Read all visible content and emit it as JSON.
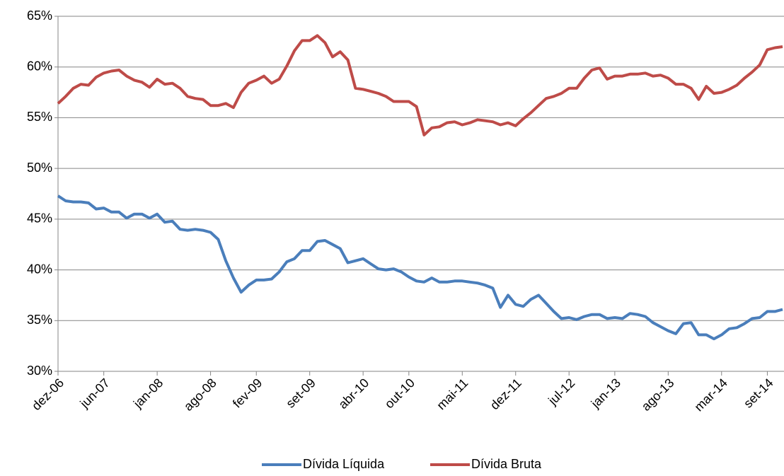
{
  "chart_data": {
    "type": "line",
    "categories": [
      "dez-06",
      null,
      null,
      null,
      null,
      null,
      "jun-07",
      null,
      null,
      null,
      null,
      null,
      null,
      "jan-08",
      null,
      null,
      null,
      null,
      null,
      null,
      "ago-08",
      null,
      null,
      null,
      null,
      null,
      "fev-09",
      null,
      null,
      null,
      null,
      null,
      null,
      "set-09",
      null,
      null,
      null,
      null,
      null,
      null,
      "abr-10",
      null,
      null,
      null,
      null,
      null,
      "out-10",
      null,
      null,
      null,
      null,
      null,
      null,
      "mai-11",
      null,
      null,
      null,
      null,
      null,
      null,
      "dez-11",
      null,
      null,
      null,
      null,
      null,
      null,
      "jul-12",
      null,
      null,
      null,
      null,
      null,
      "jan-13",
      null,
      null,
      null,
      null,
      null,
      null,
      "ago-13",
      null,
      null,
      null,
      null,
      null,
      null,
      "mar-14",
      null,
      null,
      null,
      null,
      null,
      "set-14",
      null,
      null
    ],
    "series": [
      {
        "name": "Dívida Líquida",
        "color": "#4a7ebb",
        "values": [
          47.3,
          46.8,
          46.7,
          46.7,
          46.6,
          46.0,
          46.1,
          45.7,
          45.7,
          45.1,
          45.5,
          45.5,
          45.1,
          45.5,
          44.7,
          44.8,
          44.0,
          43.9,
          44.0,
          43.9,
          43.7,
          43.0,
          40.9,
          39.2,
          37.8,
          38.5,
          39.0,
          39.0,
          39.1,
          39.8,
          40.8,
          41.1,
          41.9,
          41.9,
          42.8,
          42.9,
          42.5,
          42.1,
          40.7,
          40.9,
          41.1,
          40.6,
          40.1,
          40.0,
          40.1,
          39.8,
          39.3,
          38.9,
          38.8,
          39.2,
          38.8,
          38.8,
          38.9,
          38.9,
          38.8,
          38.7,
          38.5,
          38.2,
          36.3,
          37.5,
          36.6,
          36.4,
          37.1,
          37.5,
          36.7,
          35.9,
          35.2,
          35.3,
          35.1,
          35.4,
          35.6,
          35.6,
          35.2,
          35.3,
          35.2,
          35.7,
          35.6,
          35.4,
          34.8,
          34.4,
          34.0,
          33.7,
          34.7,
          34.8,
          33.6,
          33.6,
          33.2,
          33.6,
          34.2,
          34.3,
          34.7,
          35.2,
          35.3,
          35.9,
          35.9,
          36.1
        ]
      },
      {
        "name": "Dívida Bruta",
        "color": "#be4b48",
        "values": [
          56.4,
          57.1,
          57.9,
          58.3,
          58.2,
          59.0,
          59.4,
          59.6,
          59.7,
          59.1,
          58.7,
          58.5,
          58.0,
          58.8,
          58.3,
          58.4,
          57.9,
          57.1,
          56.9,
          56.8,
          56.2,
          56.2,
          56.4,
          56.0,
          57.5,
          58.4,
          58.7,
          59.1,
          58.4,
          58.8,
          60.1,
          61.6,
          62.6,
          62.6,
          63.1,
          62.4,
          61.0,
          61.5,
          60.7,
          57.9,
          57.8,
          57.6,
          57.4,
          57.1,
          56.6,
          56.6,
          56.6,
          56.1,
          53.3,
          54.0,
          54.1,
          54.5,
          54.6,
          54.3,
          54.5,
          54.8,
          54.7,
          54.6,
          54.3,
          54.5,
          54.2,
          54.9,
          55.5,
          56.2,
          56.9,
          57.1,
          57.4,
          57.9,
          57.9,
          58.9,
          59.7,
          59.9,
          58.8,
          59.1,
          59.1,
          59.3,
          59.3,
          59.4,
          59.1,
          59.2,
          58.9,
          58.3,
          58.3,
          57.9,
          56.8,
          58.1,
          57.4,
          57.5,
          57.8,
          58.2,
          58.9,
          59.5,
          60.2,
          61.7,
          61.9,
          62.0
        ]
      }
    ],
    "ylim": [
      30,
      65
    ],
    "yticks": [
      {
        "value": 30,
        "label": "30%"
      },
      {
        "value": 35,
        "label": "35%"
      },
      {
        "value": 40,
        "label": "40%"
      },
      {
        "value": 45,
        "label": "45%"
      },
      {
        "value": 50,
        "label": "50%"
      },
      {
        "value": 55,
        "label": "55%"
      },
      {
        "value": 60,
        "label": "60%"
      },
      {
        "value": 65,
        "label": "65%"
      }
    ],
    "grid": true,
    "legend": "bottom"
  }
}
